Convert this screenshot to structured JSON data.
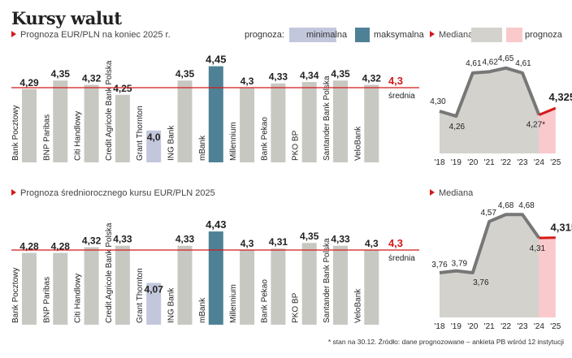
{
  "title": "Kursy walut",
  "legend": {
    "prognoza_label": "prognoza:",
    "min_label": "minimalna",
    "max_label": "maksymalna",
    "mediana_label": "Mediana",
    "prognoza_line_label": "prognoza",
    "min_color": "#c3c7dc",
    "max_color": "#4f8196",
    "mediana_color": "#d4d2cd",
    "prognoza_color": "#f9c9cc"
  },
  "colors": {
    "bar": "#c8c8c2",
    "min": "#c3c7dc",
    "max": "#4f8196",
    "avg": "#d21b1b",
    "area": "#d4d2cd",
    "line": "#777777",
    "forecast": "#f9c9cc"
  },
  "footnote": "* stan na 30.12. Źródło: dane prognozowane – ankieta PB wśród 12 instytucji",
  "chart_data": [
    {
      "type": "bar",
      "title": "Prognoza EUR/PLN na koniec 2025 r.",
      "categories": [
        "Bank Pocztowy",
        "BNP Paribas",
        "Citi Handlowy",
        "Credit Agricole Bank Polska",
        "Grant Thornton",
        "ING Bank",
        "mBank",
        "Millennium",
        "Bank Pekao",
        "PKO BP",
        "Santander Bank Polska",
        "VeloBank"
      ],
      "values": [
        4.29,
        4.35,
        4.32,
        4.25,
        4.0,
        4.35,
        4.45,
        4.3,
        4.33,
        4.34,
        4.35,
        4.32
      ],
      "labels": [
        "4,29",
        "4,35",
        "4,32",
        "4,25",
        "4,0",
        "4,35",
        "4,45",
        "4,3",
        "4,33",
        "4,34",
        "4,35",
        "4,32"
      ],
      "min_index": 4,
      "max_index": 6,
      "average": 4.3,
      "average_label": "4,3",
      "average_name": "średnia"
    },
    {
      "type": "line",
      "title": "",
      "x": [
        "'18",
        "'19",
        "'20",
        "'21",
        "'22",
        "'23",
        "'24",
        "'25"
      ],
      "values": [
        4.3,
        4.26,
        4.61,
        4.62,
        4.65,
        4.61,
        4.27,
        4.325
      ],
      "labels": [
        "4,30",
        "4,26",
        "4,61",
        "4,62",
        "4,65",
        "4,61",
        "4,27*",
        "4,325"
      ],
      "forecast_from_index": 6
    },
    {
      "type": "bar",
      "title": "Prognoza średniorocznego kursu EUR/PLN 2025",
      "categories": [
        "Bank Pocztowy",
        "BNP Paribas",
        "Citi Handlowy",
        "Credit Agricole Bank Polska",
        "Grant Thornton",
        "ING Bank",
        "mBank",
        "Millennium",
        "Bank Pekao",
        "PKO BP",
        "Santander Bank Polska",
        "VeloBank"
      ],
      "values": [
        4.28,
        4.28,
        4.32,
        4.33,
        4.07,
        4.33,
        4.43,
        4.3,
        4.31,
        4.35,
        4.33,
        4.3
      ],
      "labels": [
        "4,28",
        "4,28",
        "4,32",
        "4,33",
        "4,07",
        "4,33",
        "4,43",
        "4,3",
        "4,31",
        "4,35",
        "4,33",
        "4,3"
      ],
      "min_index": 4,
      "max_index": 6,
      "average": 4.3,
      "average_label": "4,3",
      "average_name": "średnia"
    },
    {
      "type": "line",
      "title": "Mediana",
      "x": [
        "'18",
        "'19",
        "'20",
        "'21",
        "'22",
        "'23",
        "'24",
        "'25"
      ],
      "values": [
        3.76,
        3.79,
        3.76,
        4.57,
        4.68,
        4.68,
        4.31,
        4.315
      ],
      "labels": [
        "3,76",
        "3,79",
        "3,76",
        "4,57",
        "4,68",
        "4,68",
        "4,31",
        "4,315"
      ],
      "forecast_from_index": 6
    }
  ]
}
